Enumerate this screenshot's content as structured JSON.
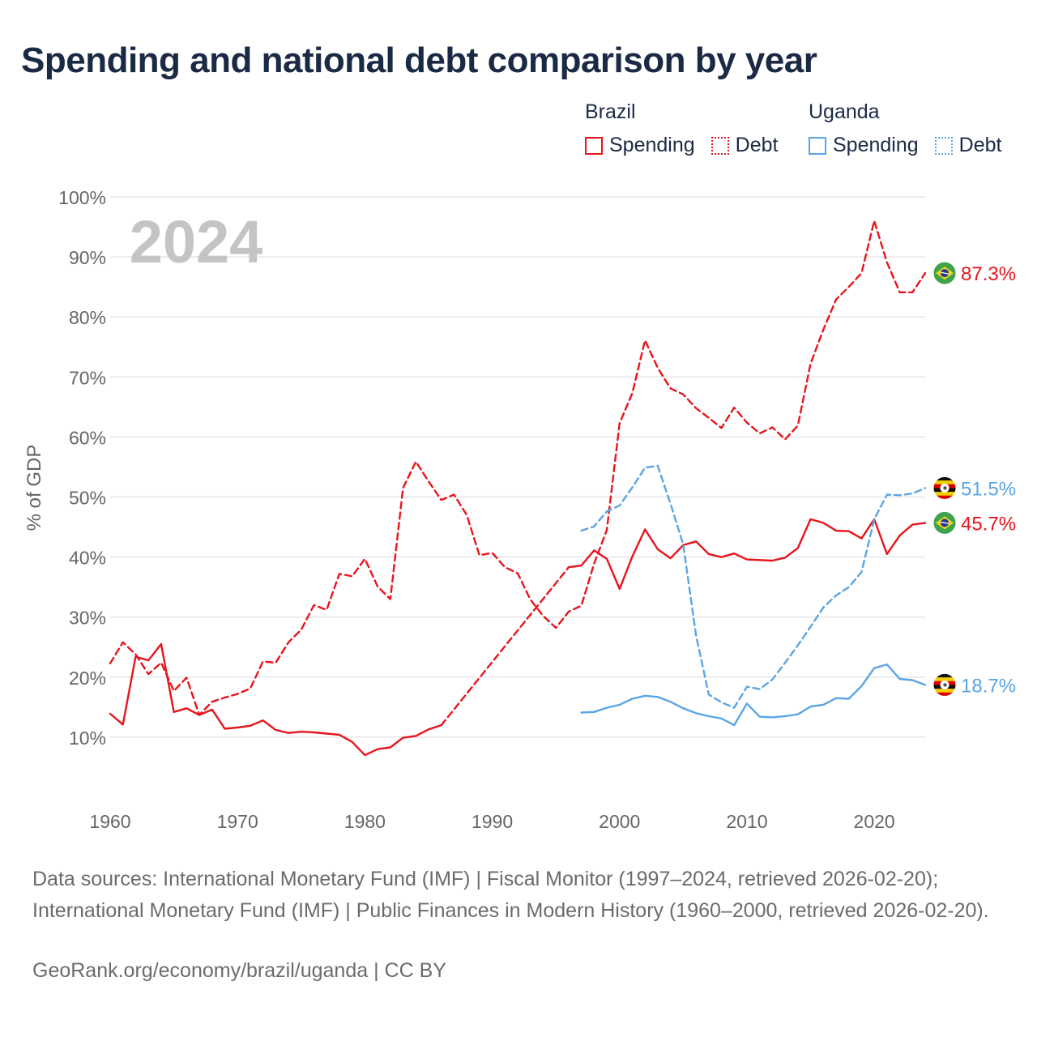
{
  "title": "Spending and national debt comparison by year",
  "legend": {
    "brazil": {
      "country": "Brazil",
      "spending": "Spending",
      "debt": "Debt"
    },
    "uganda": {
      "country": "Uganda",
      "spending": "Spending",
      "debt": "Debt"
    }
  },
  "colors": {
    "brazil": "#e8141c",
    "uganda": "#5aa5e6",
    "grid": "#e6e6e6",
    "year_watermark": "#c4c4c4"
  },
  "chart_data": {
    "type": "line",
    "year_label": "2024",
    "ylabel": "% of GDP",
    "ylim": [
      0,
      100
    ],
    "xlim": [
      1960,
      2024
    ],
    "y_ticks": [
      10,
      20,
      30,
      40,
      50,
      60,
      70,
      80,
      90,
      100
    ],
    "y_tick_labels": [
      "10%",
      "20%",
      "30%",
      "40%",
      "50%",
      "60%",
      "70%",
      "80%",
      "90%",
      "100%"
    ],
    "x_ticks": [
      1960,
      1970,
      1980,
      1990,
      2000,
      2010,
      2020
    ],
    "x_tick_labels": [
      "1960",
      "1970",
      "1980",
      "1990",
      "2000",
      "2010",
      "2020"
    ],
    "series": [
      {
        "name": "Brazil Debt",
        "country": "Brazil",
        "metric": "Debt",
        "style": "dashed",
        "color": "#e8141c",
        "end_label": "87.3%",
        "end_icon": "brazil-flag-icon",
        "points": [
          [
            1960,
            22.3
          ],
          [
            1961,
            25.8
          ],
          [
            1962,
            23.8
          ],
          [
            1963,
            20.5
          ],
          [
            1964,
            22.4
          ],
          [
            1965,
            17.7
          ],
          [
            1966,
            19.9
          ],
          [
            1967,
            13.7
          ],
          [
            1968,
            15.9
          ],
          [
            1969,
            16.6
          ],
          [
            1970,
            17.2
          ],
          [
            1971,
            18.1
          ],
          [
            1972,
            22.6
          ],
          [
            1973,
            22.4
          ],
          [
            1974,
            25.8
          ],
          [
            1975,
            27.9
          ],
          [
            1976,
            32.0
          ],
          [
            1977,
            31.2
          ],
          [
            1978,
            37.2
          ],
          [
            1979,
            36.8
          ],
          [
            1980,
            39.7
          ],
          [
            1981,
            35.1
          ],
          [
            1982,
            33.0
          ],
          [
            1983,
            51.5
          ],
          [
            1984,
            55.9
          ],
          [
            1985,
            52.6
          ],
          [
            1986,
            49.5
          ],
          [
            1987,
            50.4
          ],
          [
            1988,
            47.0
          ],
          [
            1989,
            40.3
          ],
          [
            1990,
            40.7
          ],
          [
            1991,
            38.3
          ],
          [
            1992,
            37.3
          ],
          [
            1993,
            32.9
          ],
          [
            1994,
            30.2
          ],
          [
            1995,
            28.2
          ],
          [
            1996,
            30.9
          ],
          [
            1997,
            31.9
          ],
          [
            1998,
            38.9
          ],
          [
            1999,
            44.5
          ],
          [
            2000,
            62.3
          ],
          [
            2001,
            67.3
          ],
          [
            2002,
            76.1
          ],
          [
            2003,
            71.5
          ],
          [
            2004,
            68.1
          ],
          [
            2005,
            67.1
          ],
          [
            2006,
            64.8
          ],
          [
            2007,
            63.2
          ],
          [
            2008,
            61.5
          ],
          [
            2009,
            64.9
          ],
          [
            2010,
            62.4
          ],
          [
            2011,
            60.6
          ],
          [
            2012,
            61.6
          ],
          [
            2013,
            59.6
          ],
          [
            2014,
            61.9
          ],
          [
            2015,
            72.2
          ],
          [
            2016,
            77.9
          ],
          [
            2017,
            82.9
          ],
          [
            2018,
            85.0
          ],
          [
            2019,
            87.3
          ],
          [
            2020,
            96.0
          ],
          [
            2021,
            89.1
          ],
          [
            2022,
            84.1
          ],
          [
            2023,
            84.1
          ],
          [
            2024,
            87.3
          ]
        ]
      },
      {
        "name": "Brazil Spending",
        "country": "Brazil",
        "metric": "Spending",
        "style": "solid",
        "color": "#e8141c",
        "end_label": "45.7%",
        "end_icon": "brazil-flag-icon",
        "points": [
          [
            1960,
            13.9
          ],
          [
            1961,
            12.1
          ],
          [
            1962,
            23.4
          ],
          [
            1963,
            22.8
          ],
          [
            1964,
            25.5
          ],
          [
            1965,
            14.2
          ],
          [
            1966,
            14.8
          ],
          [
            1967,
            13.7
          ],
          [
            1968,
            14.6
          ],
          [
            1969,
            11.4
          ],
          [
            1970,
            11.6
          ],
          [
            1971,
            11.9
          ],
          [
            1972,
            12.8
          ],
          [
            1973,
            11.2
          ],
          [
            1974,
            10.7
          ],
          [
            1975,
            10.9
          ],
          [
            1976,
            10.8
          ],
          [
            1977,
            10.6
          ],
          [
            1978,
            10.4
          ],
          [
            1979,
            9.2
          ],
          [
            1980,
            7.0
          ],
          [
            1981,
            8.0
          ],
          [
            1982,
            8.3
          ],
          [
            1983,
            9.9
          ],
          [
            1984,
            10.2
          ],
          [
            1985,
            11.3
          ],
          [
            1986,
            12.0
          ],
          [
            1996,
            38.3
          ],
          [
            1997,
            38.6
          ],
          [
            1998,
            41.1
          ],
          [
            1999,
            39.7
          ],
          [
            2000,
            34.7
          ],
          [
            2001,
            40.1
          ],
          [
            2002,
            44.6
          ],
          [
            2003,
            41.3
          ],
          [
            2004,
            39.8
          ],
          [
            2005,
            42.0
          ],
          [
            2006,
            42.6
          ],
          [
            2007,
            40.5
          ],
          [
            2008,
            40.0
          ],
          [
            2009,
            40.6
          ],
          [
            2010,
            39.6
          ],
          [
            2011,
            39.5
          ],
          [
            2012,
            39.4
          ],
          [
            2013,
            39.9
          ],
          [
            2014,
            41.5
          ],
          [
            2015,
            46.3
          ],
          [
            2016,
            45.7
          ],
          [
            2017,
            44.4
          ],
          [
            2018,
            44.3
          ],
          [
            2019,
            43.1
          ],
          [
            2020,
            46.3
          ],
          [
            2021,
            40.5
          ],
          [
            2022,
            43.6
          ],
          [
            2023,
            45.4
          ],
          [
            2024,
            45.7
          ]
        ]
      },
      {
        "name": "Uganda Debt",
        "country": "Uganda",
        "metric": "Debt",
        "style": "dashed",
        "color": "#5aa5e6",
        "end_label": "51.5%",
        "end_icon": "uganda-flag-icon",
        "points": [
          [
            1997,
            44.4
          ],
          [
            1998,
            45.1
          ],
          [
            1999,
            47.6
          ],
          [
            2000,
            48.6
          ],
          [
            2001,
            51.6
          ],
          [
            2002,
            54.9
          ],
          [
            2003,
            55.2
          ],
          [
            2004,
            48.9
          ],
          [
            2005,
            42.1
          ],
          [
            2006,
            27.0
          ],
          [
            2007,
            17.1
          ],
          [
            2008,
            15.8
          ],
          [
            2009,
            14.9
          ],
          [
            2010,
            18.4
          ],
          [
            2011,
            18.0
          ],
          [
            2012,
            19.6
          ],
          [
            2013,
            22.4
          ],
          [
            2014,
            25.3
          ],
          [
            2015,
            28.4
          ],
          [
            2016,
            31.6
          ],
          [
            2017,
            33.6
          ],
          [
            2018,
            35.0
          ],
          [
            2019,
            37.5
          ],
          [
            2020,
            46.3
          ],
          [
            2021,
            50.4
          ],
          [
            2022,
            50.3
          ],
          [
            2023,
            50.6
          ],
          [
            2024,
            51.5
          ]
        ]
      },
      {
        "name": "Uganda Spending",
        "country": "Uganda",
        "metric": "Spending",
        "style": "solid",
        "color": "#5aa5e6",
        "end_label": "18.7%",
        "end_icon": "uganda-flag-icon",
        "points": [
          [
            1997,
            14.1
          ],
          [
            1998,
            14.2
          ],
          [
            1999,
            14.9
          ],
          [
            2000,
            15.4
          ],
          [
            2001,
            16.4
          ],
          [
            2002,
            16.9
          ],
          [
            2003,
            16.7
          ],
          [
            2004,
            15.9
          ],
          [
            2005,
            14.8
          ],
          [
            2006,
            14.0
          ],
          [
            2007,
            13.5
          ],
          [
            2008,
            13.1
          ],
          [
            2009,
            12.0
          ],
          [
            2010,
            15.6
          ],
          [
            2011,
            13.4
          ],
          [
            2012,
            13.3
          ],
          [
            2013,
            13.5
          ],
          [
            2014,
            13.8
          ],
          [
            2015,
            15.1
          ],
          [
            2016,
            15.4
          ],
          [
            2017,
            16.5
          ],
          [
            2018,
            16.4
          ],
          [
            2019,
            18.5
          ],
          [
            2020,
            21.5
          ],
          [
            2021,
            22.1
          ],
          [
            2022,
            19.7
          ],
          [
            2023,
            19.5
          ],
          [
            2024,
            18.7
          ]
        ]
      }
    ]
  },
  "footer": {
    "sources": "Data sources: International Monetary Fund (IMF) | Fiscal Monitor (1997–2024, retrieved 2026-02-20); International Monetary Fund (IMF) | Public Finances in Modern History (1960–2000, retrieved 2026-02-20).",
    "credit": "GeoRank.org/economy/brazil/uganda | CC BY"
  }
}
